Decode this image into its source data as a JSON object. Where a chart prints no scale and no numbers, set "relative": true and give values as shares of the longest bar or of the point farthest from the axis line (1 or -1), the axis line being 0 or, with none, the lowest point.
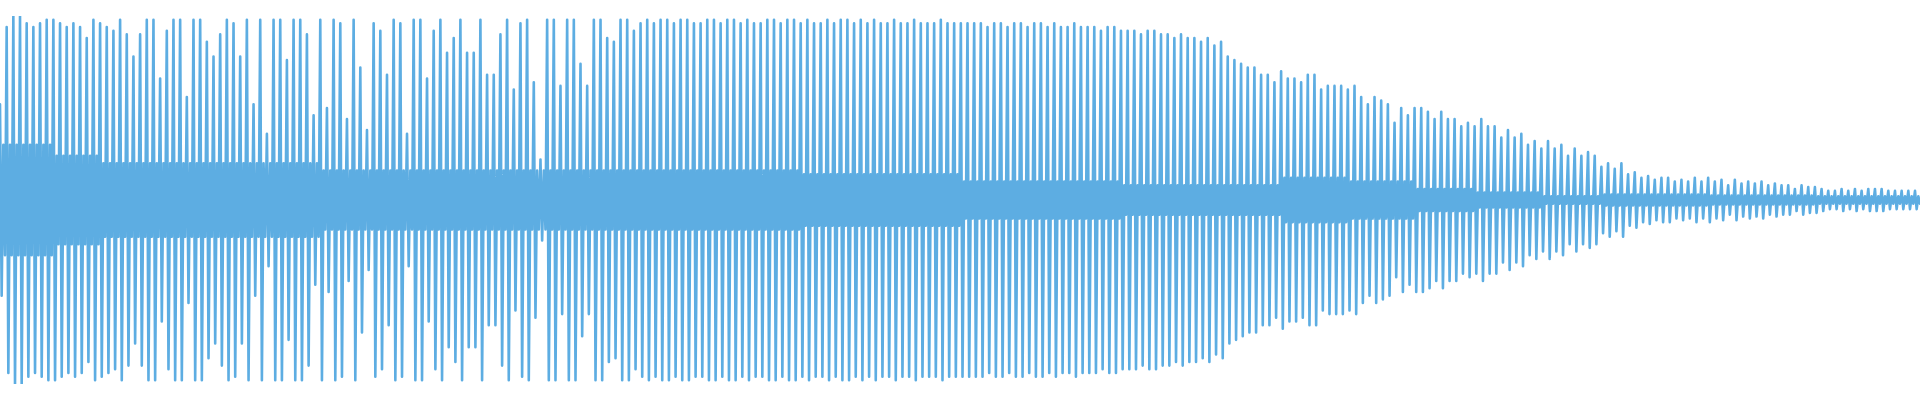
{
  "chart_data": {
    "type": "line",
    "relative": true,
    "color": "#5dade2",
    "tick_labels": false,
    "categories": [
      null,
      null,
      null,
      null,
      null,
      null,
      null,
      null,
      null,
      null,
      null,
      null,
      null,
      null,
      null,
      null,
      null,
      null,
      null,
      null,
      null,
      null,
      null,
      null,
      null,
      null,
      null,
      null,
      null,
      null,
      null,
      null,
      null,
      null,
      null,
      null,
      null,
      null,
      null,
      null,
      null,
      null,
      null,
      null,
      null,
      null,
      null,
      null,
      null,
      null,
      null,
      null,
      null,
      null,
      null,
      null,
      null,
      null,
      null,
      null,
      null,
      null,
      null,
      null,
      null,
      null,
      null,
      null,
      null,
      null,
      null,
      null,
      null,
      null,
      null,
      null,
      null,
      null,
      null,
      null,
      null,
      null,
      null,
      null,
      null,
      null,
      null,
      null,
      null,
      null,
      null,
      null,
      null,
      null,
      null,
      null,
      null,
      null,
      null,
      null,
      null,
      null,
      null,
      null,
      null,
      null,
      null,
      null,
      null,
      null,
      null,
      null,
      null,
      null,
      null,
      null,
      null,
      null,
      null,
      null,
      null,
      null,
      null,
      null,
      null,
      null,
      null,
      null,
      null,
      null,
      null,
      null,
      null,
      null,
      null,
      null,
      null,
      null,
      null,
      null,
      null,
      null,
      null,
      null,
      null,
      null,
      null,
      null,
      null,
      null,
      null,
      null,
      null,
      null,
      null,
      null,
      null,
      null,
      null,
      null,
      null,
      null,
      null,
      null,
      null,
      null,
      null,
      null,
      null,
      null,
      null,
      null,
      null,
      null,
      null,
      null,
      null,
      null,
      null,
      null,
      null,
      null,
      null,
      null,
      null,
      null,
      null,
      null,
      null,
      null,
      null,
      null,
      null,
      null,
      null,
      null,
      null,
      null,
      null,
      null,
      null,
      null,
      null,
      null,
      null,
      null,
      null,
      null,
      null,
      null,
      null,
      null,
      null,
      null,
      null,
      null,
      null,
      null,
      null,
      null,
      null,
      null,
      null,
      null,
      null,
      null,
      null,
      null,
      null,
      null,
      null,
      null,
      null,
      null,
      null,
      null,
      null,
      null,
      null,
      null,
      null,
      null,
      null,
      null,
      null,
      null,
      null,
      null,
      null,
      null,
      null,
      null,
      null,
      null,
      null,
      null,
      null,
      null,
      null,
      null,
      null,
      null,
      null,
      null,
      null,
      null,
      null,
      null,
      null,
      null,
      null,
      null,
      null,
      null,
      null,
      null,
      null,
      null,
      null,
      null,
      null,
      null,
      null,
      null,
      null,
      null,
      null,
      null,
      null,
      null,
      null,
      null,
      null,
      null,
      null,
      null,
      null,
      null,
      null,
      null,
      null,
      null,
      null,
      null,
      null,
      null,
      null,
      null,
      null,
      null,
      null,
      null,
      null,
      null,
      null,
      null,
      null,
      null,
      null,
      null,
      null,
      null,
      null,
      null,
      null,
      null,
      null,
      null,
      null,
      null,
      null,
      null,
      null,
      null,
      null,
      null,
      null,
      null,
      null,
      null,
      null,
      null,
      null,
      null,
      null,
      null,
      null,
      null,
      null,
      null,
      null,
      null,
      null,
      null,
      null,
      null,
      null,
      null,
      null,
      null,
      null,
      null,
      null,
      null,
      null,
      null,
      null,
      null,
      null,
      null,
      null,
      null,
      null,
      null,
      null,
      null,
      null,
      null,
      null,
      null,
      null,
      null,
      null,
      null,
      null,
      null,
      null,
      null,
      null,
      null,
      null,
      null,
      null,
      null,
      null,
      null,
      null,
      null,
      null,
      null,
      null,
      null,
      null,
      null,
      null,
      null,
      null,
      null,
      null,
      null,
      null,
      null,
      null,
      null,
      null,
      null,
      null,
      null,
      null,
      null,
      null,
      null,
      null,
      null,
      null,
      null,
      null,
      null,
      null,
      null,
      null,
      null,
      null,
      null,
      null,
      null,
      null,
      null,
      null,
      null,
      null,
      null,
      null,
      null,
      null,
      null,
      null,
      null,
      null,
      null,
      null,
      null,
      null,
      null,
      null,
      null,
      null,
      null,
      null,
      null,
      null,
      null,
      null,
      null,
      null,
      null,
      null,
      null,
      null,
      null,
      null,
      null,
      null,
      null,
      null,
      null,
      null,
      null,
      null,
      null,
      null,
      null,
      null,
      null,
      null,
      null,
      null,
      null,
      null,
      null,
      null,
      null,
      null,
      null,
      null,
      null,
      null,
      null,
      null,
      null,
      null,
      null,
      null,
      null,
      null,
      null,
      null,
      null,
      null,
      null,
      null,
      null,
      null,
      null,
      null,
      null,
      null,
      null,
      null,
      null,
      null,
      null,
      null,
      null,
      null,
      null,
      null,
      null,
      null,
      null,
      null,
      null,
      null,
      null,
      null,
      null,
      null,
      null,
      null,
      null,
      null,
      null,
      null,
      null,
      null,
      null,
      null,
      null,
      null,
      null,
      null,
      null,
      null,
      null,
      null,
      null,
      null,
      null,
      null,
      null,
      null,
      null,
      null,
      null,
      null,
      null,
      null,
      null,
      null,
      null,
      null,
      null,
      null,
      null,
      null,
      null,
      null,
      null,
      null,
      null,
      null,
      null,
      null,
      null,
      null,
      null,
      null,
      null,
      null,
      null,
      null,
      null,
      null,
      null,
      null,
      null,
      null,
      null,
      null,
      null,
      null,
      null,
      null,
      null,
      null,
      null,
      null,
      null,
      null,
      null,
      null,
      null,
      null,
      null,
      null,
      null,
      null,
      null,
      null,
      null,
      null,
      null,
      null,
      null,
      null,
      null,
      null,
      null,
      null,
      null,
      null,
      null,
      null,
      null,
      null,
      null,
      null,
      null,
      null,
      null,
      null,
      null,
      null,
      null,
      null,
      null,
      null,
      null,
      null,
      null,
      null,
      null,
      null,
      null,
      null,
      null,
      null,
      null,
      null,
      null,
      null,
      null,
      null,
      null,
      null,
      null,
      null,
      null,
      null,
      null,
      null,
      null,
      null,
      null,
      null,
      null,
      null,
      null,
      null,
      null,
      null,
      null,
      null,
      null,
      null,
      null,
      null,
      null,
      null,
      null,
      null,
      null,
      null,
      null,
      null,
      null,
      null,
      null,
      null,
      null,
      null,
      null,
      null,
      null,
      null,
      null,
      null,
      null,
      null,
      null,
      null,
      null,
      null,
      null,
      null,
      null,
      null,
      null,
      null,
      null,
      null,
      null,
      null,
      null,
      null,
      null,
      null,
      null,
      null,
      null,
      null,
      null,
      null,
      null,
      null,
      null,
      null,
      null,
      null,
      null,
      null,
      null,
      null,
      null,
      null,
      null,
      null,
      null,
      null,
      null,
      null,
      null,
      null,
      null,
      null,
      null,
      null,
      null,
      null,
      null,
      null,
      null,
      null,
      null,
      null,
      null,
      null,
      null,
      null,
      null,
      null,
      null,
      null,
      null,
      null,
      null,
      null,
      null,
      null,
      null,
      null,
      null,
      null,
      null,
      null,
      null,
      null,
      null,
      null,
      null,
      null,
      null,
      null,
      null,
      null,
      null,
      null,
      null,
      null,
      null,
      null,
      null,
      null,
      null,
      null,
      null,
      null,
      null,
      null,
      null,
      null,
      null,
      null,
      null,
      null,
      null,
      null,
      null,
      null,
      null,
      null,
      null,
      null,
      null,
      null,
      null,
      null,
      null,
      null,
      null,
      null,
      null,
      null,
      null,
      null,
      null,
      null,
      null,
      null,
      null,
      null,
      null,
      null,
      null,
      null,
      null,
      null,
      null,
      null,
      null,
      null,
      null,
      null,
      null,
      null,
      null,
      null,
      null,
      null,
      null,
      null,
      null,
      null,
      null,
      null,
      null,
      null,
      null,
      null,
      null,
      null,
      null,
      null,
      null,
      null,
      null,
      null,
      null,
      null,
      null,
      null,
      null,
      null,
      null,
      null,
      null,
      null,
      null,
      null,
      null,
      null,
      null,
      null,
      null,
      null,
      null,
      null,
      null,
      null,
      null,
      null,
      null,
      null,
      null,
      null,
      null,
      null,
      null,
      null,
      null,
      null,
      null,
      null,
      null,
      null,
      null,
      null,
      null,
      null,
      null,
      null,
      null,
      null,
      null,
      null,
      null,
      null,
      null,
      null,
      null,
      null,
      null,
      null,
      null,
      null,
      null,
      null,
      null,
      null,
      null,
      null,
      null,
      null,
      null,
      null,
      null,
      null,
      null,
      null,
      null,
      null,
      null,
      null,
      null,
      null,
      null,
      null,
      null,
      null,
      null,
      null,
      null,
      null,
      null,
      null,
      null,
      null,
      null,
      null,
      null,
      null,
      null,
      null,
      null,
      null,
      null,
      null,
      null,
      null,
      null,
      null,
      null,
      null,
      null,
      null,
      null,
      null,
      null,
      null,
      null,
      null,
      null,
      null,
      null,
      null,
      null,
      null,
      null,
      null,
      null,
      null,
      null,
      null,
      null,
      null,
      null,
      null,
      null,
      null,
      null,
      null,
      null,
      null,
      null,
      null,
      null,
      null,
      null,
      null,
      null,
      null,
      null,
      null,
      null,
      null,
      null,
      null,
      null,
      null,
      null,
      null,
      null,
      null,
      null,
      null,
      null,
      null,
      null,
      null,
      null,
      null,
      null,
      null,
      null,
      null,
      null,
      null,
      null,
      null,
      null,
      null,
      null,
      null,
      null,
      null,
      null,
      null,
      null,
      null,
      null,
      null,
      null,
      null,
      null,
      null,
      null,
      null,
      null,
      null,
      null,
      null,
      null,
      null,
      null,
      null,
      null,
      null,
      null,
      null,
      null,
      null,
      null,
      null,
      null,
      null,
      null,
      null,
      null,
      null,
      null,
      null,
      null,
      null,
      null,
      null,
      null,
      null,
      null,
      null,
      null,
      null,
      null,
      null,
      null,
      null,
      null,
      null,
      null,
      null,
      null,
      null,
      null,
      null,
      null,
      null,
      null,
      null,
      null,
      null,
      null,
      null,
      null,
      null,
      null,
      null,
      null,
      null,
      null,
      null,
      null,
      null,
      null,
      null,
      null,
      null,
      null,
      null,
      null,
      null,
      null,
      null,
      null,
      null,
      null,
      null,
      null,
      null,
      null,
      null,
      null,
      null,
      null
    ],
    "values": [
      0.76,
      0.24,
      0.65,
      0.35,
      0.97,
      0.03,
      0.65,
      0.35,
      1,
      0,
      0.65,
      0.35,
      1,
      0,
      0.65,
      0.35,
      0.98,
      0.02,
      0.65,
      0.35,
      0.97,
      0.03,
      0.65,
      0.35,
      0.98,
      0.02,
      0.65,
      0.35,
      0.99,
      0.01,
      0.65,
      0.35,
      0.99,
      0.01,
      0.62,
      0.38,
      0.98,
      0.02,
      0.62,
      0.38,
      0.97,
      0.03,
      0.62,
      0.38,
      0.98,
      0.02,
      0.62,
      0.38,
      0.97,
      0.03,
      0.62,
      0.38,
      0.94,
      0.06,
      0.62,
      0.38,
      0.99,
      0.01,
      0.62,
      0.38,
      0.98,
      0.02,
      0.6,
      0.4,
      0.97,
      0.03,
      0.6,
      0.4,
      0.96,
      0.04,
      0.6,
      0.4,
      0.99,
      0.01,
      0.6,
      0.4,
      0.95,
      0.05,
      0.6,
      0.4,
      0.89,
      0.11,
      0.6,
      0.4,
      0.95,
      0.05,
      0.6,
      0.4,
      0.99,
      0.01,
      0.6,
      0.4,
      0.99,
      0.01,
      0.6,
      0.4,
      0.83,
      0.17,
      0.6,
      0.4,
      0.96,
      0.04,
      0.6,
      0.4,
      0.99,
      0.01,
      0.6,
      0.4,
      0.99,
      0.01,
      0.6,
      0.4,
      0.78,
      0.22,
      0.6,
      0.4,
      0.99,
      0.01,
      0.6,
      0.4,
      0.99,
      0.01,
      0.6,
      0.4,
      0.93,
      0.07,
      0.6,
      0.4,
      0.89,
      0.11,
      0.6,
      0.4,
      0.95,
      0.05,
      0.6,
      0.4,
      0.99,
      0.01,
      0.6,
      0.4,
      0.98,
      0.02,
      0.6,
      0.4,
      0.89,
      0.11,
      0.6,
      0.4,
      0.99,
      0.01,
      0.6,
      0.4,
      0.76,
      0.24,
      0.6,
      0.4,
      0.99,
      0.01,
      0.6,
      0.4,
      0.68,
      0.32,
      0.6,
      0.4,
      0.99,
      0.01,
      0.6,
      0.4,
      0.99,
      0.01,
      0.6,
      0.4,
      0.88,
      0.12,
      0.6,
      0.4,
      0.99,
      0.01,
      0.6,
      0.4,
      0.99,
      0.01,
      0.6,
      0.4,
      0.95,
      0.05,
      0.6,
      0.4,
      0.73,
      0.27,
      0.6,
      0.4,
      0.99,
      0.01,
      0.58,
      0.42,
      0.75,
      0.25,
      0.58,
      0.42,
      0.99,
      0.01,
      0.58,
      0.42,
      0.98,
      0.02,
      0.58,
      0.42,
      0.72,
      0.28,
      0.58,
      0.42,
      0.99,
      0.01,
      0.58,
      0.42,
      0.86,
      0.14,
      0.58,
      0.42,
      0.69,
      0.31,
      0.58,
      0.42,
      0.98,
      0.02,
      0.58,
      0.42,
      0.96,
      0.04,
      0.58,
      0.42,
      0.84,
      0.16,
      0.58,
      0.42,
      0.99,
      0.01,
      0.58,
      0.42,
      0.98,
      0.02,
      0.58,
      0.42,
      0.68,
      0.32,
      0.58,
      0.42,
      0.99,
      0.01,
      0.58,
      0.42,
      0.99,
      0.01,
      0.58,
      0.42,
      0.83,
      0.17,
      0.58,
      0.42,
      0.96,
      0.04,
      0.58,
      0.42,
      0.99,
      0.01,
      0.58,
      0.42,
      0.9,
      0.1,
      0.58,
      0.42,
      0.94,
      0.06,
      0.58,
      0.42,
      0.99,
      0.01,
      0.58,
      0.42,
      0.9,
      0.1,
      0.58,
      0.42,
      0.9,
      0.1,
      0.58,
      0.42,
      0.99,
      0.01,
      0.58,
      0.42,
      0.84,
      0.16,
      0.58,
      0.42,
      0.84,
      0.16,
      0.58,
      0.42,
      0.95,
      0.05,
      0.58,
      0.42,
      0.99,
      0.01,
      0.58,
      0.42,
      0.8,
      0.2,
      0.58,
      0.42,
      0.98,
      0.02,
      0.58,
      0.42,
      0.99,
      0.01,
      0.58,
      0.42,
      0.82,
      0.18,
      0.58,
      0.42,
      0.61,
      0.39,
      0.58,
      0.42,
      0.99,
      0.01,
      0.58,
      0.42,
      0.99,
      0.01,
      0.58,
      0.42,
      0.81,
      0.19,
      0.58,
      0.42,
      0.99,
      0.01,
      0.58,
      0.42,
      0.99,
      0.01,
      0.58,
      0.42,
      0.87,
      0.13,
      0.58,
      0.42,
      0.81,
      0.19,
      0.58,
      0.42,
      0.99,
      0.01,
      0.58,
      0.42,
      0.99,
      0.01,
      0.58,
      0.42,
      0.94,
      0.06,
      0.58,
      0.42,
      0.93,
      0.07,
      0.58,
      0.42,
      0.99,
      0.01,
      0.58,
      0.42,
      0.99,
      0.01,
      0.58,
      0.42,
      0.96,
      0.04,
      0.58,
      0.42,
      0.98,
      0.02,
      0.58,
      0.42,
      0.99,
      0.01,
      0.58,
      0.42,
      0.98,
      0.02,
      0.58,
      0.42,
      0.99,
      0.01,
      0.58,
      0.42,
      0.99,
      0.01,
      0.58,
      0.42,
      0.98,
      0.02,
      0.58,
      0.42,
      0.99,
      0.01,
      0.58,
      0.42,
      0.99,
      0.01,
      0.58,
      0.42,
      0.98,
      0.02,
      0.58,
      0.42,
      0.98,
      0.02,
      0.58,
      0.42,
      0.99,
      0.01,
      0.58,
      0.42,
      0.99,
      0.01,
      0.58,
      0.42,
      0.98,
      0.02,
      0.58,
      0.42,
      0.99,
      0.01,
      0.58,
      0.42,
      0.99,
      0.01,
      0.58,
      0.42,
      0.98,
      0.02,
      0.58,
      0.42,
      0.99,
      0.01,
      0.58,
      0.42,
      0.98,
      0.02,
      0.58,
      0.42,
      0.98,
      0.02,
      0.58,
      0.42,
      0.99,
      0.01,
      0.58,
      0.42,
      0.99,
      0.01,
      0.58,
      0.42,
      0.98,
      0.02,
      0.58,
      0.42,
      0.99,
      0.01,
      0.58,
      0.42,
      0.99,
      0.01,
      0.58,
      0.42,
      0.98,
      0.02,
      0.57,
      0.43,
      0.99,
      0.01,
      0.57,
      0.43,
      0.98,
      0.02,
      0.57,
      0.43,
      0.98,
      0.02,
      0.57,
      0.43,
      0.99,
      0.01,
      0.57,
      0.43,
      0.98,
      0.02,
      0.57,
      0.43,
      0.99,
      0.01,
      0.57,
      0.43,
      0.99,
      0.01,
      0.57,
      0.43,
      0.98,
      0.02,
      0.57,
      0.43,
      0.99,
      0.01,
      0.57,
      0.43,
      0.98,
      0.02,
      0.57,
      0.43,
      0.99,
      0.01,
      0.57,
      0.43,
      0.98,
      0.02,
      0.57,
      0.43,
      0.98,
      0.02,
      0.57,
      0.43,
      0.99,
      0.01,
      0.57,
      0.43,
      0.98,
      0.02,
      0.57,
      0.43,
      0.98,
      0.02,
      0.57,
      0.43,
      0.99,
      0.01,
      0.57,
      0.43,
      0.98,
      0.02,
      0.57,
      0.43,
      0.98,
      0.02,
      0.57,
      0.43,
      0.98,
      0.02,
      0.57,
      0.43,
      0.99,
      0.01,
      0.57,
      0.43,
      0.98,
      0.02,
      0.57,
      0.43,
      0.98,
      0.02,
      0.57,
      0.43,
      0.98,
      0.02,
      0.55,
      0.45,
      0.98,
      0.02,
      0.55,
      0.45,
      0.98,
      0.02,
      0.55,
      0.45,
      0.98,
      0.02,
      0.55,
      0.45,
      0.97,
      0.03,
      0.55,
      0.45,
      0.98,
      0.02,
      0.55,
      0.45,
      0.98,
      0.02,
      0.55,
      0.45,
      0.97,
      0.03,
      0.55,
      0.45,
      0.98,
      0.02,
      0.55,
      0.45,
      0.98,
      0.02,
      0.55,
      0.45,
      0.97,
      0.03,
      0.55,
      0.45,
      0.98,
      0.02,
      0.55,
      0.45,
      0.98,
      0.02,
      0.55,
      0.45,
      0.97,
      0.03,
      0.55,
      0.45,
      0.98,
      0.02,
      0.55,
      0.45,
      0.97,
      0.03,
      0.55,
      0.45,
      0.97,
      0.03,
      0.55,
      0.45,
      0.98,
      0.02,
      0.55,
      0.45,
      0.97,
      0.03,
      0.55,
      0.45,
      0.97,
      0.03,
      0.55,
      0.45,
      0.97,
      0.03,
      0.55,
      0.45,
      0.96,
      0.04,
      0.55,
      0.45,
      0.97,
      0.03,
      0.55,
      0.45,
      0.97,
      0.03,
      0.55,
      0.45,
      0.96,
      0.04,
      0.54,
      0.46,
      0.96,
      0.04,
      0.54,
      0.46,
      0.96,
      0.04,
      0.54,
      0.46,
      0.95,
      0.05,
      0.54,
      0.46,
      0.96,
      0.04,
      0.54,
      0.46,
      0.96,
      0.04,
      0.54,
      0.46,
      0.95,
      0.05,
      0.54,
      0.46,
      0.95,
      0.05,
      0.54,
      0.46,
      0.94,
      0.06,
      0.54,
      0.46,
      0.95,
      0.05,
      0.54,
      0.46,
      0.94,
      0.06,
      0.54,
      0.46,
      0.94,
      0.06,
      0.54,
      0.46,
      0.93,
      0.07,
      0.54,
      0.46,
      0.94,
      0.06,
      0.54,
      0.46,
      0.92,
      0.08,
      0.54,
      0.46,
      0.93,
      0.07,
      0.54,
      0.46,
      0.89,
      0.11,
      0.54,
      0.46,
      0.88,
      0.12,
      0.54,
      0.46,
      0.87,
      0.13,
      0.54,
      0.46,
      0.86,
      0.14,
      0.54,
      0.46,
      0.86,
      0.14,
      0.54,
      0.46,
      0.84,
      0.16,
      0.54,
      0.46,
      0.84,
      0.16,
      0.54,
      0.46,
      0.82,
      0.18,
      0.54,
      0.46,
      0.85,
      0.15,
      0.56,
      0.44,
      0.83,
      0.17,
      0.56,
      0.44,
      0.83,
      0.17,
      0.56,
      0.44,
      0.82,
      0.18,
      0.56,
      0.44,
      0.84,
      0.16,
      0.56,
      0.44,
      0.84,
      0.16,
      0.56,
      0.44,
      0.8,
      0.2,
      0.56,
      0.44,
      0.81,
      0.19,
      0.56,
      0.44,
      0.81,
      0.19,
      0.56,
      0.44,
      0.81,
      0.19,
      0.56,
      0.44,
      0.8,
      0.2,
      0.55,
      0.45,
      0.81,
      0.19,
      0.55,
      0.45,
      0.78,
      0.22,
      0.55,
      0.45,
      0.76,
      0.24,
      0.55,
      0.45,
      0.78,
      0.22,
      0.55,
      0.45,
      0.77,
      0.23,
      0.55,
      0.45,
      0.76,
      0.24,
      0.55,
      0.45,
      0.71,
      0.29,
      0.55,
      0.45,
      0.75,
      0.25,
      0.55,
      0.45,
      0.73,
      0.27,
      0.55,
      0.45,
      0.75,
      0.25,
      0.53,
      0.47,
      0.75,
      0.25,
      0.53,
      0.47,
      0.74,
      0.26,
      0.53,
      0.47,
      0.72,
      0.28,
      0.53,
      0.47,
      0.74,
      0.26,
      0.53,
      0.47,
      0.72,
      0.28,
      0.53,
      0.47,
      0.72,
      0.28,
      0.53,
      0.47,
      0.7,
      0.3,
      0.53,
      0.47,
      0.71,
      0.29,
      0.53,
      0.47,
      0.7,
      0.3,
      0.52,
      0.48,
      0.72,
      0.28,
      0.52,
      0.48,
      0.7,
      0.3,
      0.52,
      0.48,
      0.7,
      0.3,
      0.52,
      0.48,
      0.67,
      0.33,
      0.52,
      0.48,
      0.69,
      0.31,
      0.52,
      0.48,
      0.67,
      0.33,
      0.52,
      0.48,
      0.68,
      0.32,
      0.52,
      0.48,
      0.65,
      0.35,
      0.52,
      0.48,
      0.66,
      0.34,
      0.52,
      0.48,
      0.64,
      0.36,
      0.51,
      0.49,
      0.66,
      0.34,
      0.51,
      0.49,
      0.64,
      0.36,
      0.51,
      0.49,
      0.65,
      0.35,
      0.51,
      0.49,
      0.62,
      0.38,
      0.51,
      0.49,
      0.64,
      0.36,
      0.51,
      0.49,
      0.62,
      0.38,
      0.51,
      0.49,
      0.63,
      0.37,
      0.51,
      0.49,
      0.62,
      0.38,
      0.51,
      0.49,
      0.59,
      0.41,
      0.515,
      0.485,
      0.6,
      0.4,
      0.515,
      0.485,
      0.585,
      0.415,
      0.515,
      0.485,
      0.6,
      0.4,
      0.515,
      0.485,
      0.57,
      0.43,
      0.515,
      0.485,
      0.575,
      0.425,
      0.515,
      0.485,
      0.56,
      0.44,
      0.515,
      0.485,
      0.565,
      0.435,
      0.515,
      0.485,
      0.555,
      0.445,
      0.515,
      0.485,
      0.56,
      0.44,
      0.515,
      0.485,
      0.56,
      0.44,
      0.515,
      0.485,
      0.55,
      0.45,
      0.515,
      0.485,
      0.555,
      0.445,
      0.515,
      0.485,
      0.55,
      0.45,
      0.515,
      0.485,
      0.56,
      0.44,
      0.515,
      0.485,
      0.55,
      0.45,
      0.515,
      0.485,
      0.56,
      0.44,
      0.512,
      0.488,
      0.55,
      0.45,
      0.512,
      0.488,
      0.555,
      0.445,
      0.512,
      0.488,
      0.54,
      0.46,
      0.512,
      0.488,
      0.555,
      0.445,
      0.512,
      0.488,
      0.545,
      0.455,
      0.512,
      0.488,
      0.55,
      0.45,
      0.512,
      0.488,
      0.545,
      0.455,
      0.512,
      0.488,
      0.55,
      0.45,
      0.512,
      0.488,
      0.54,
      0.46,
      0.512,
      0.488,
      0.545,
      0.455,
      0.512,
      0.488,
      0.54,
      0.46,
      0.512,
      0.488,
      0.54,
      0.46,
      0.512,
      0.488,
      0.53,
      0.47,
      0.512,
      0.488,
      0.54,
      0.46,
      0.512,
      0.488,
      0.535,
      0.465,
      0.512,
      0.488,
      0.535,
      0.465,
      0.51,
      0.49,
      0.53,
      0.47,
      0.51,
      0.49,
      0.525,
      0.475,
      0.51,
      0.49,
      0.525,
      0.475,
      0.51,
      0.49,
      0.53,
      0.47,
      0.51,
      0.49,
      0.525,
      0.475,
      0.51,
      0.49,
      0.53,
      0.47,
      0.51,
      0.49,
      0.525,
      0.475,
      0.51,
      0.49,
      0.53,
      0.47,
      0.51,
      0.49,
      0.53,
      0.47,
      0.51,
      0.49,
      0.53,
      0.47,
      0.51,
      0.49,
      0.525,
      0.475,
      0.51,
      0.49,
      0.525,
      0.475,
      0.51,
      0.49,
      0.525,
      0.475,
      0.51,
      0.49,
      0.525,
      0.475,
      0.51,
      0.49,
      0.525,
      0.475,
      0.51,
      0.49
    ]
  }
}
